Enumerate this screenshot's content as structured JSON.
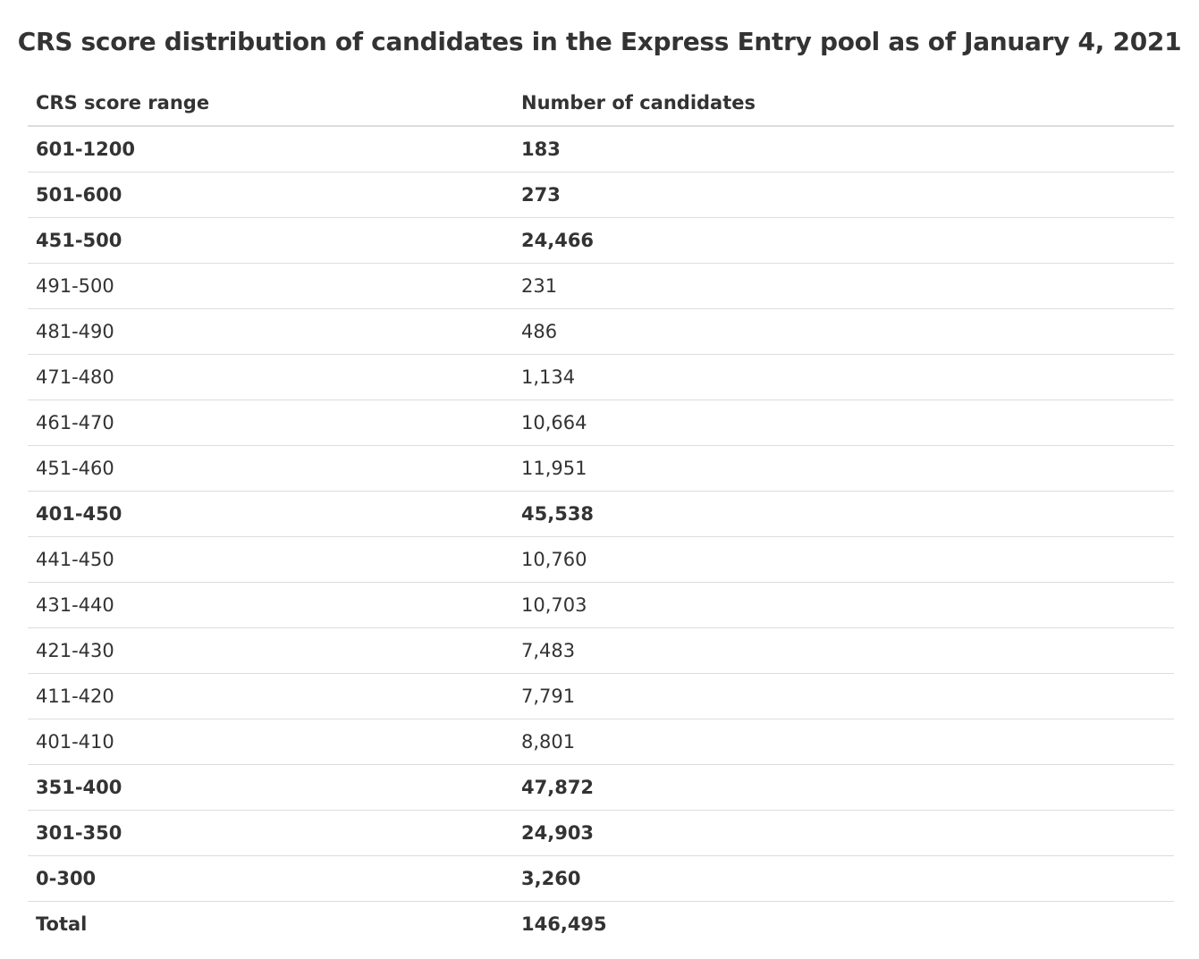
{
  "title": "CRS score distribution of candidates in the Express Entry pool as of January 4, 2021",
  "table": {
    "headers": [
      "CRS score range",
      "Number of candidates"
    ],
    "rows": [
      {
        "range": "601-1200",
        "count": "183",
        "bold": true
      },
      {
        "range": "501-600",
        "count": "273",
        "bold": true
      },
      {
        "range": "451-500",
        "count": "24,466",
        "bold": true
      },
      {
        "range": "491-500",
        "count": "231",
        "bold": false
      },
      {
        "range": "481-490",
        "count": "486",
        "bold": false
      },
      {
        "range": "471-480",
        "count": "1,134",
        "bold": false
      },
      {
        "range": "461-470",
        "count": "10,664",
        "bold": false
      },
      {
        "range": "451-460",
        "count": "11,951",
        "bold": false
      },
      {
        "range": "401-450",
        "count": "45,538",
        "bold": true
      },
      {
        "range": "441-450",
        "count": "10,760",
        "bold": false
      },
      {
        "range": "431-440",
        "count": "10,703",
        "bold": false
      },
      {
        "range": "421-430",
        "count": "7,483",
        "bold": false
      },
      {
        "range": "411-420",
        "count": "7,791",
        "bold": false
      },
      {
        "range": "401-410",
        "count": "8,801",
        "bold": false
      },
      {
        "range": "351-400",
        "count": "47,872",
        "bold": true
      },
      {
        "range": "301-350",
        "count": "24,903",
        "bold": true
      },
      {
        "range": "0-300",
        "count": "3,260",
        "bold": true
      },
      {
        "range": "Total",
        "count": "146,495",
        "bold": true
      }
    ]
  }
}
